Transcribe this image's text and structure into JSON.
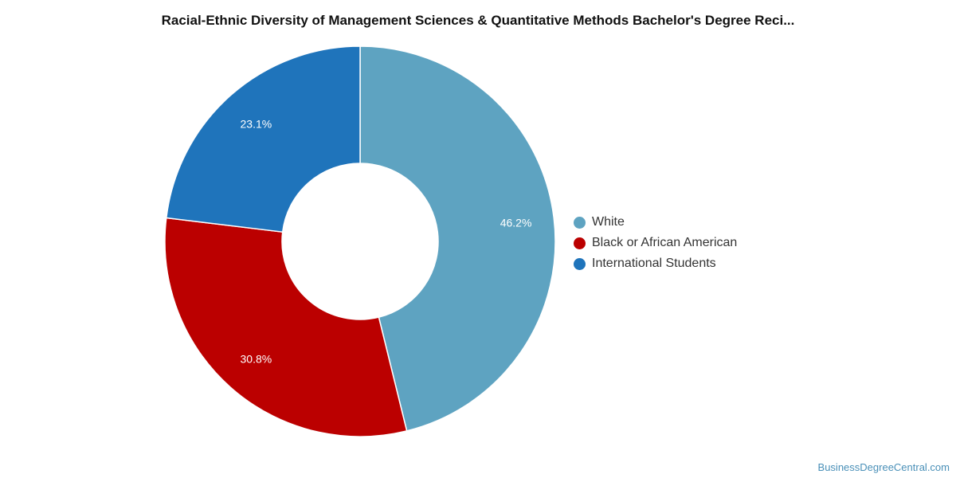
{
  "chart_data": {
    "type": "pie",
    "title": "Racial-Ethnic Diversity of Management Sciences & Quantitative Methods Bachelor's Degree Reci...",
    "categories": [
      "White",
      "Black or African American",
      "International Students"
    ],
    "values": [
      46.2,
      30.8,
      23.1
    ],
    "labels": [
      "46.2%",
      "30.8%",
      "23.1%"
    ],
    "colors": [
      "#5ea3c1",
      "#bb0000",
      "#1f74bb"
    ],
    "donut": true,
    "legend_position": "right"
  },
  "watermark": "BusinessDegreeCentral.com"
}
